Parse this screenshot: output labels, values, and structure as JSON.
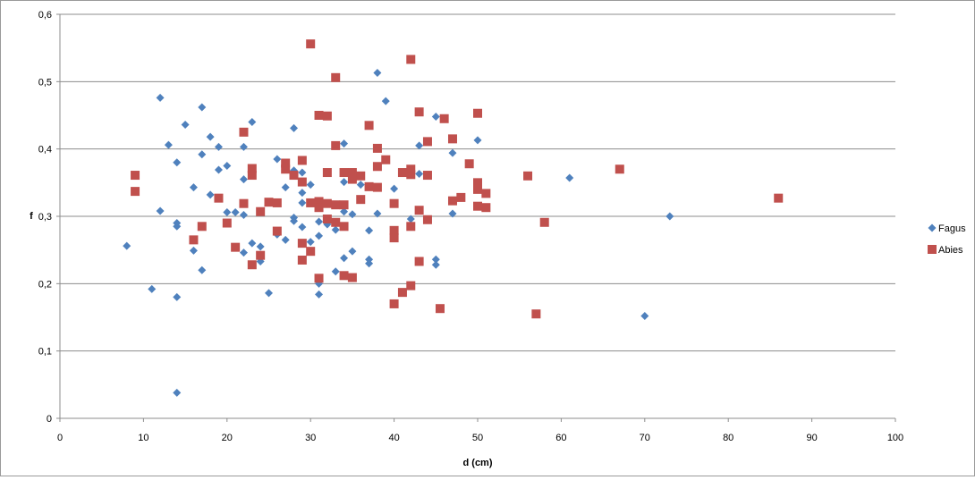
{
  "chart_data": {
    "type": "scatter",
    "title": "",
    "xlabel": "d (cm)",
    "ylabel": "f",
    "xlim": [
      0,
      100
    ],
    "ylim": [
      0,
      0.6
    ],
    "x_ticks": [
      "0",
      "10",
      "20",
      "30",
      "40",
      "50",
      "60",
      "70",
      "80",
      "90",
      "100"
    ],
    "y_ticks": [
      "0",
      "0,1",
      "0,2",
      "0,3",
      "0,4",
      "0,5",
      "0,6"
    ],
    "grid": "horizontal",
    "legend_position": "right",
    "series": [
      {
        "name": "Fagus",
        "marker": "diamond",
        "color": "#4F81BD",
        "points": [
          [
            8,
            0.256
          ],
          [
            11,
            0.192
          ],
          [
            12,
            0.476
          ],
          [
            12,
            0.308
          ],
          [
            13,
            0.406
          ],
          [
            14,
            0.38
          ],
          [
            14,
            0.29
          ],
          [
            14,
            0.285
          ],
          [
            14,
            0.18
          ],
          [
            14,
            0.038
          ],
          [
            15,
            0.436
          ],
          [
            16,
            0.343
          ],
          [
            16,
            0.249
          ],
          [
            17,
            0.462
          ],
          [
            17,
            0.392
          ],
          [
            17,
            0.22
          ],
          [
            18,
            0.418
          ],
          [
            18,
            0.332
          ],
          [
            19,
            0.403
          ],
          [
            19,
            0.369
          ],
          [
            20,
            0.375
          ],
          [
            20,
            0.306
          ],
          [
            21,
            0.306
          ],
          [
            22,
            0.403
          ],
          [
            22,
            0.355
          ],
          [
            22,
            0.302
          ],
          [
            22,
            0.246
          ],
          [
            23,
            0.44
          ],
          [
            23,
            0.26
          ],
          [
            24,
            0.255
          ],
          [
            24,
            0.233
          ],
          [
            25,
            0.186
          ],
          [
            26,
            0.385
          ],
          [
            26,
            0.273
          ],
          [
            27,
            0.343
          ],
          [
            27,
            0.265
          ],
          [
            28,
            0.431
          ],
          [
            28,
            0.368
          ],
          [
            28,
            0.298
          ],
          [
            28,
            0.293
          ],
          [
            29,
            0.365
          ],
          [
            29,
            0.335
          ],
          [
            29,
            0.32
          ],
          [
            29,
            0.284
          ],
          [
            30,
            0.347
          ],
          [
            30,
            0.262
          ],
          [
            31,
            0.292
          ],
          [
            31,
            0.271
          ],
          [
            31,
            0.2
          ],
          [
            31,
            0.184
          ],
          [
            32,
            0.288
          ],
          [
            33,
            0.28
          ],
          [
            33,
            0.218
          ],
          [
            34,
            0.408
          ],
          [
            34,
            0.351
          ],
          [
            34,
            0.307
          ],
          [
            34,
            0.238
          ],
          [
            35,
            0.303
          ],
          [
            35,
            0.248
          ],
          [
            36,
            0.347
          ],
          [
            37,
            0.279
          ],
          [
            37,
            0.236
          ],
          [
            37,
            0.23
          ],
          [
            38,
            0.513
          ],
          [
            38,
            0.304
          ],
          [
            39,
            0.471
          ],
          [
            40,
            0.341
          ],
          [
            42,
            0.296
          ],
          [
            43,
            0.405
          ],
          [
            43,
            0.363
          ],
          [
            45,
            0.448
          ],
          [
            45,
            0.236
          ],
          [
            45,
            0.228
          ],
          [
            47,
            0.394
          ],
          [
            47,
            0.304
          ],
          [
            50,
            0.413
          ],
          [
            61,
            0.357
          ],
          [
            70,
            0.152
          ],
          [
            73,
            0.3
          ]
        ]
      },
      {
        "name": "Abies",
        "marker": "square",
        "color": "#C0504D",
        "points": [
          [
            9,
            0.361
          ],
          [
            9,
            0.337
          ],
          [
            16,
            0.265
          ],
          [
            17,
            0.285
          ],
          [
            19,
            0.327
          ],
          [
            20,
            0.29
          ],
          [
            21,
            0.254
          ],
          [
            22,
            0.425
          ],
          [
            22,
            0.319
          ],
          [
            23,
            0.371
          ],
          [
            23,
            0.361
          ],
          [
            23,
            0.228
          ],
          [
            24,
            0.307
          ],
          [
            24,
            0.242
          ],
          [
            25,
            0.321
          ],
          [
            26,
            0.32
          ],
          [
            26,
            0.278
          ],
          [
            27,
            0.379
          ],
          [
            27,
            0.37
          ],
          [
            28,
            0.361
          ],
          [
            29,
            0.383
          ],
          [
            29,
            0.351
          ],
          [
            29,
            0.26
          ],
          [
            29,
            0.235
          ],
          [
            30,
            0.556
          ],
          [
            30,
            0.32
          ],
          [
            30,
            0.248
          ],
          [
            31,
            0.45
          ],
          [
            31,
            0.322
          ],
          [
            31,
            0.313
          ],
          [
            31,
            0.208
          ],
          [
            32,
            0.449
          ],
          [
            32,
            0.365
          ],
          [
            32,
            0.319
          ],
          [
            32,
            0.296
          ],
          [
            33,
            0.506
          ],
          [
            33,
            0.405
          ],
          [
            33,
            0.317
          ],
          [
            33,
            0.291
          ],
          [
            34,
            0.365
          ],
          [
            34,
            0.317
          ],
          [
            34,
            0.285
          ],
          [
            34,
            0.212
          ],
          [
            35,
            0.365
          ],
          [
            35,
            0.355
          ],
          [
            35,
            0.209
          ],
          [
            36,
            0.36
          ],
          [
            36,
            0.325
          ],
          [
            37,
            0.435
          ],
          [
            37,
            0.344
          ],
          [
            38,
            0.401
          ],
          [
            38,
            0.374
          ],
          [
            38,
            0.343
          ],
          [
            39,
            0.384
          ],
          [
            40,
            0.319
          ],
          [
            40,
            0.279
          ],
          [
            40,
            0.268
          ],
          [
            40,
            0.17
          ],
          [
            41,
            0.365
          ],
          [
            41,
            0.187
          ],
          [
            42,
            0.533
          ],
          [
            42,
            0.37
          ],
          [
            42,
            0.362
          ],
          [
            42,
            0.285
          ],
          [
            42,
            0.197
          ],
          [
            43,
            0.455
          ],
          [
            43,
            0.309
          ],
          [
            43,
            0.233
          ],
          [
            44,
            0.411
          ],
          [
            44,
            0.361
          ],
          [
            44,
            0.295
          ],
          [
            45.5,
            0.163
          ],
          [
            46,
            0.445
          ],
          [
            47,
            0.415
          ],
          [
            47,
            0.323
          ],
          [
            48,
            0.328
          ],
          [
            49,
            0.378
          ],
          [
            50,
            0.453
          ],
          [
            50,
            0.35
          ],
          [
            50,
            0.34
          ],
          [
            50,
            0.315
          ],
          [
            51,
            0.334
          ],
          [
            51,
            0.313
          ],
          [
            56,
            0.36
          ],
          [
            57,
            0.155
          ],
          [
            58,
            0.291
          ],
          [
            67,
            0.37
          ],
          [
            86,
            0.327
          ]
        ]
      }
    ]
  }
}
